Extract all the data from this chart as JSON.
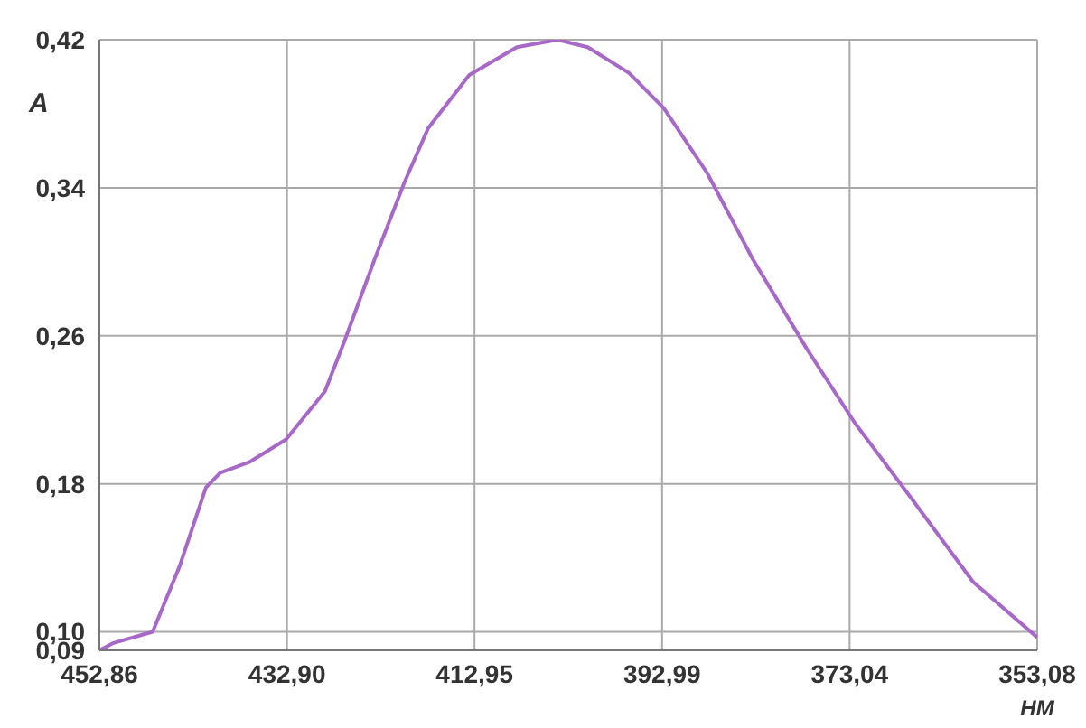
{
  "chart_data": {
    "type": "line",
    "xlabel": "НМ",
    "ylabel": "A",
    "x": [
      452.86,
      451.35,
      447.19,
      444.36,
      441.52,
      440.0,
      436.8,
      433.0,
      428.86,
      426.8,
      423.6,
      420.4,
      417.9,
      413.5,
      408.45,
      404.1,
      400.9,
      396.5,
      392.8,
      388.2,
      383.3,
      377.6,
      372.5,
      366.3,
      359.9,
      353.08
    ],
    "series": [
      {
        "color": "#a868c8",
        "values": [
          0.09,
          0.094,
          0.1,
          0.135,
          0.178,
          0.186,
          0.192,
          0.204,
          0.23,
          0.257,
          0.301,
          0.343,
          0.372,
          0.401,
          0.416,
          0.42,
          0.416,
          0.402,
          0.383,
          0.348,
          0.301,
          0.253,
          0.213,
          0.171,
          0.127,
          0.097
        ]
      }
    ],
    "xlim": [
      452.86,
      353.08
    ],
    "xticks": [
      {
        "value": 452.86,
        "label": "452,86"
      },
      {
        "value": 432.9,
        "label": "432,90"
      },
      {
        "value": 412.95,
        "label": "412,95"
      },
      {
        "value": 392.99,
        "label": "392,99"
      },
      {
        "value": 373.04,
        "label": "373,04"
      },
      {
        "value": 353.08,
        "label": "353,08"
      }
    ],
    "ylim": [
      0.09,
      0.42
    ],
    "yticks": [
      {
        "value": 0.09,
        "label": "0,09"
      },
      {
        "value": 0.1,
        "label": "0,10"
      },
      {
        "value": 0.18,
        "label": "0,18"
      },
      {
        "value": 0.26,
        "label": "0,26"
      },
      {
        "value": 0.34,
        "label": "0,34"
      },
      {
        "value": 0.42,
        "label": "0,42"
      }
    ],
    "grid": true,
    "marker": "none",
    "line_style": "solid"
  }
}
